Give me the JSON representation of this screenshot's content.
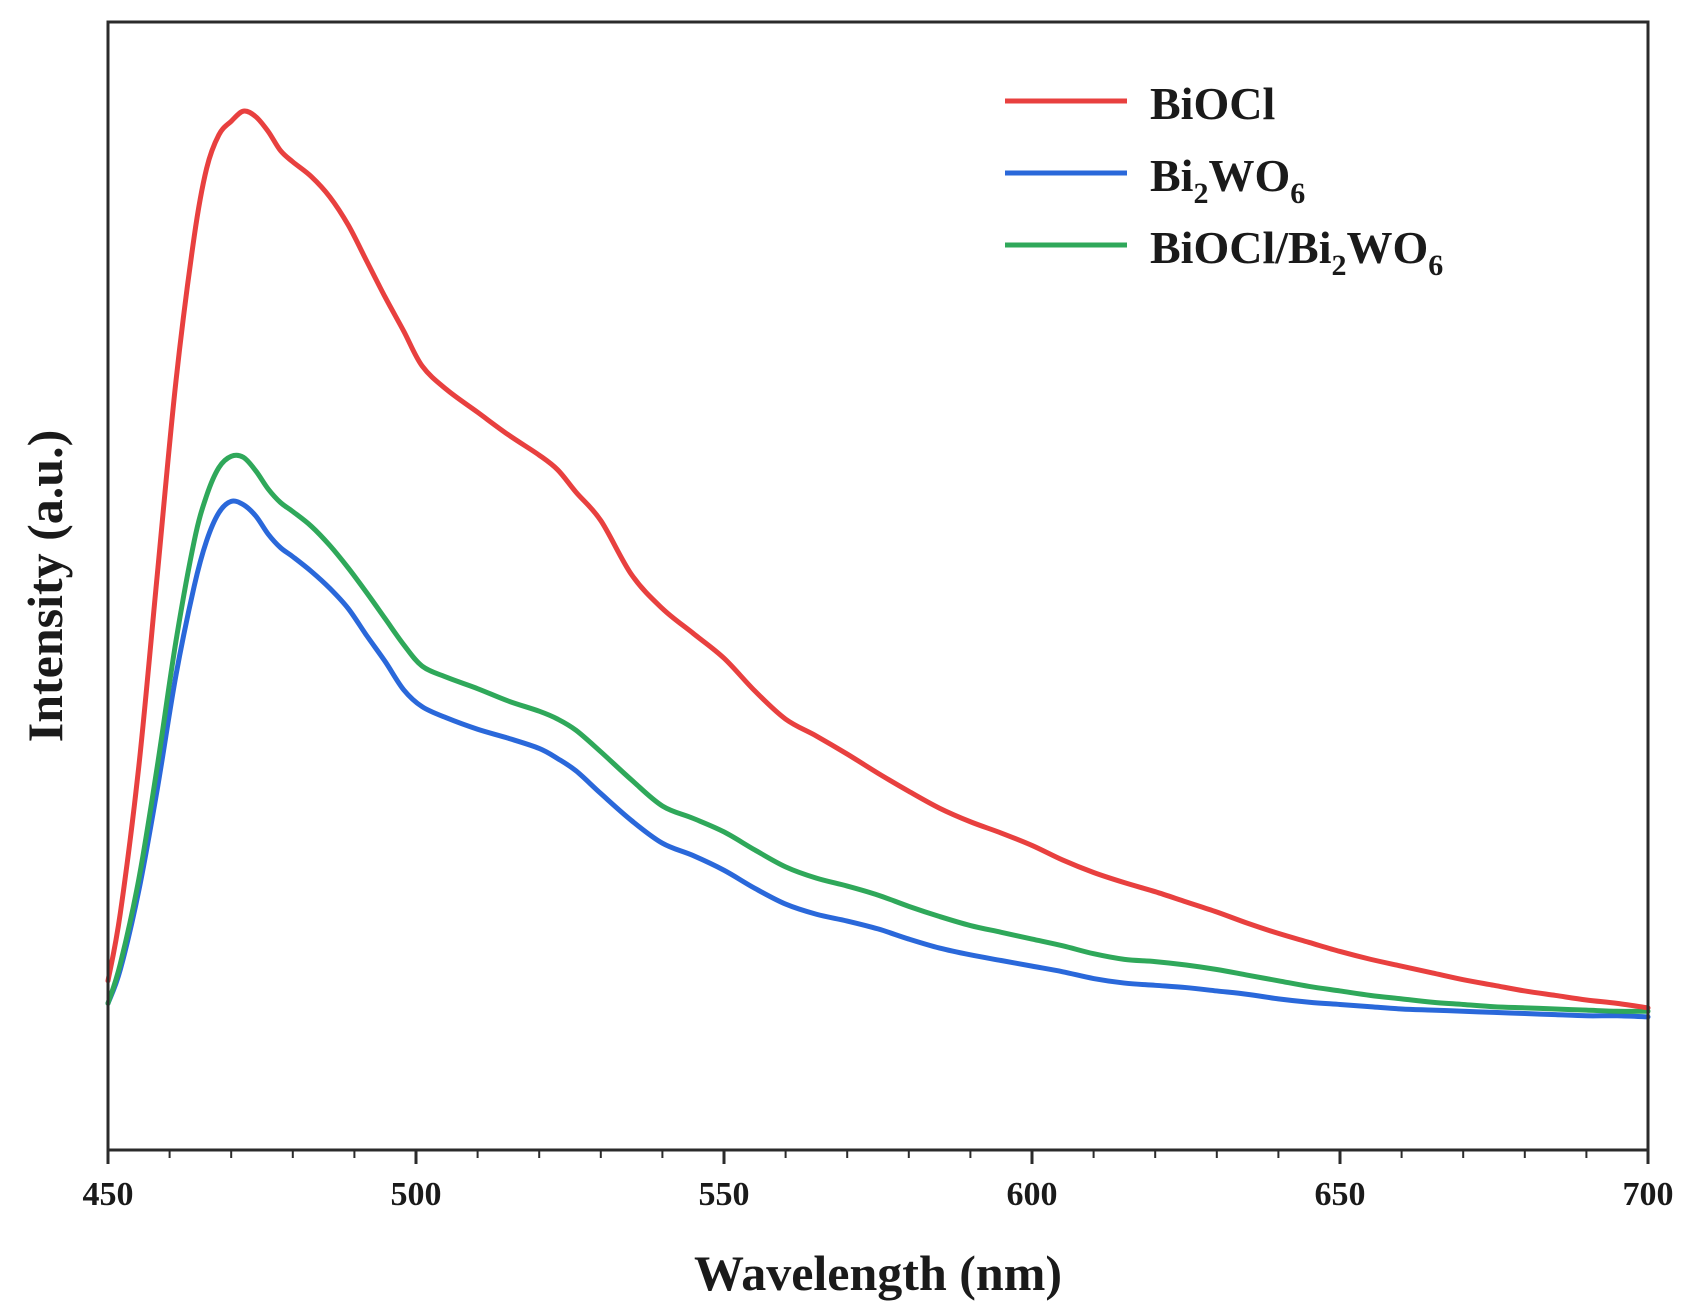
{
  "chart_data": {
    "type": "line",
    "title": "",
    "xlabel": "Wavelength (nm)",
    "ylabel": "Intensity (a.u.)",
    "xlim": [
      450,
      700
    ],
    "ylim": [
      0,
      100
    ],
    "xticks": [
      450,
      500,
      550,
      600,
      650,
      700
    ],
    "x_minor_step": 10,
    "y_ticks_shown": false,
    "legend_position": "top-right",
    "series": [
      {
        "name": "BiOCl",
        "label_parts": [
          {
            "t": "BiOCl",
            "sub": false
          }
        ],
        "color": "#e8403f",
        "x": [
          450,
          452,
          455,
          458,
          461,
          464,
          466,
          468,
          470,
          472,
          474,
          476,
          478,
          480,
          483,
          486,
          489,
          492,
          495,
          498,
          501,
          505,
          510,
          515,
          520,
          523,
          526,
          530,
          535,
          540,
          545,
          550,
          555,
          560,
          565,
          570,
          575,
          580,
          585,
          590,
          595,
          600,
          605,
          610,
          615,
          620,
          625,
          630,
          635,
          640,
          645,
          650,
          655,
          660,
          665,
          670,
          675,
          680,
          685,
          690,
          695,
          700
        ],
        "y": [
          15,
          21,
          34,
          51,
          68,
          81,
          87,
          90,
          91.2,
          92.1,
          91.6,
          90.3,
          88.6,
          87.6,
          86.3,
          84.5,
          82.0,
          78.8,
          75.6,
          72.6,
          69.5,
          67.4,
          65.4,
          63.4,
          61.6,
          60.3,
          58.3,
          55.8,
          51.0,
          48.0,
          45.8,
          43.6,
          40.7,
          38.2,
          36.7,
          35.1,
          33.4,
          31.8,
          30.3,
          29.1,
          28.1,
          27.0,
          25.7,
          24.6,
          23.7,
          22.9,
          22.0,
          21.1,
          20.1,
          19.2,
          18.4,
          17.6,
          16.9,
          16.3,
          15.7,
          15.1,
          14.6,
          14.1,
          13.7,
          13.3,
          13.0,
          12.6
        ]
      },
      {
        "name": "Bi2WO6",
        "label_parts": [
          {
            "t": "Bi",
            "sub": false
          },
          {
            "t": "2",
            "sub": true
          },
          {
            "t": "WO",
            "sub": false
          },
          {
            "t": "6",
            "sub": true
          }
        ],
        "color": "#2a68da",
        "x": [
          450,
          452,
          455,
          458,
          461,
          464,
          466,
          468,
          470,
          472,
          474,
          476,
          478,
          480,
          483,
          486,
          489,
          492,
          495,
          498,
          501,
          505,
          510,
          515,
          520,
          523,
          526,
          530,
          535,
          540,
          545,
          550,
          555,
          560,
          565,
          570,
          575,
          580,
          585,
          590,
          595,
          600,
          605,
          610,
          615,
          620,
          625,
          630,
          635,
          640,
          645,
          650,
          655,
          660,
          665,
          670,
          675,
          680,
          685,
          690,
          695,
          700
        ],
        "y": [
          13,
          16,
          23,
          32,
          42,
          50,
          54,
          56.5,
          57.5,
          57.2,
          56.2,
          54.6,
          53.4,
          52.6,
          51.3,
          49.8,
          48.0,
          45.6,
          43.3,
          40.8,
          39.3,
          38.3,
          37.3,
          36.5,
          35.6,
          34.7,
          33.6,
          31.6,
          29.2,
          27.2,
          26.1,
          24.8,
          23.2,
          21.8,
          20.9,
          20.3,
          19.6,
          18.7,
          17.9,
          17.3,
          16.8,
          16.3,
          15.8,
          15.2,
          14.8,
          14.6,
          14.4,
          14.1,
          13.8,
          13.4,
          13.1,
          12.9,
          12.7,
          12.5,
          12.4,
          12.3,
          12.2,
          12.1,
          12.0,
          11.9,
          11.9,
          11.8
        ]
      },
      {
        "name": "BiOCl/Bi2WO6",
        "label_parts": [
          {
            "t": "BiOCl/Bi",
            "sub": false
          },
          {
            "t": "2",
            "sub": true
          },
          {
            "t": "WO",
            "sub": false
          },
          {
            "t": "6",
            "sub": true
          }
        ],
        "color": "#2fa85a",
        "x": [
          450,
          452,
          455,
          458,
          461,
          464,
          466,
          468,
          470,
          472,
          474,
          476,
          478,
          480,
          483,
          486,
          489,
          492,
          495,
          498,
          501,
          505,
          510,
          515,
          520,
          523,
          526,
          530,
          535,
          540,
          545,
          550,
          555,
          560,
          565,
          570,
          575,
          580,
          585,
          590,
          595,
          600,
          605,
          610,
          615,
          620,
          625,
          630,
          635,
          640,
          645,
          650,
          655,
          660,
          665,
          670,
          675,
          680,
          685,
          690,
          695,
          700
        ],
        "y": [
          13,
          16.5,
          24,
          34,
          45,
          54,
          58,
          60.5,
          61.5,
          61.4,
          60.2,
          58.6,
          57.4,
          56.6,
          55.3,
          53.6,
          51.6,
          49.4,
          47.1,
          44.8,
          42.9,
          41.9,
          40.9,
          39.8,
          38.9,
          38.2,
          37.2,
          35.3,
          32.8,
          30.5,
          29.4,
          28.2,
          26.6,
          25.1,
          24.1,
          23.4,
          22.6,
          21.6,
          20.7,
          19.9,
          19.3,
          18.7,
          18.1,
          17.4,
          16.9,
          16.7,
          16.4,
          16.0,
          15.5,
          15.0,
          14.5,
          14.1,
          13.7,
          13.4,
          13.1,
          12.9,
          12.7,
          12.6,
          12.5,
          12.4,
          12.3,
          12.3
        ]
      }
    ]
  }
}
